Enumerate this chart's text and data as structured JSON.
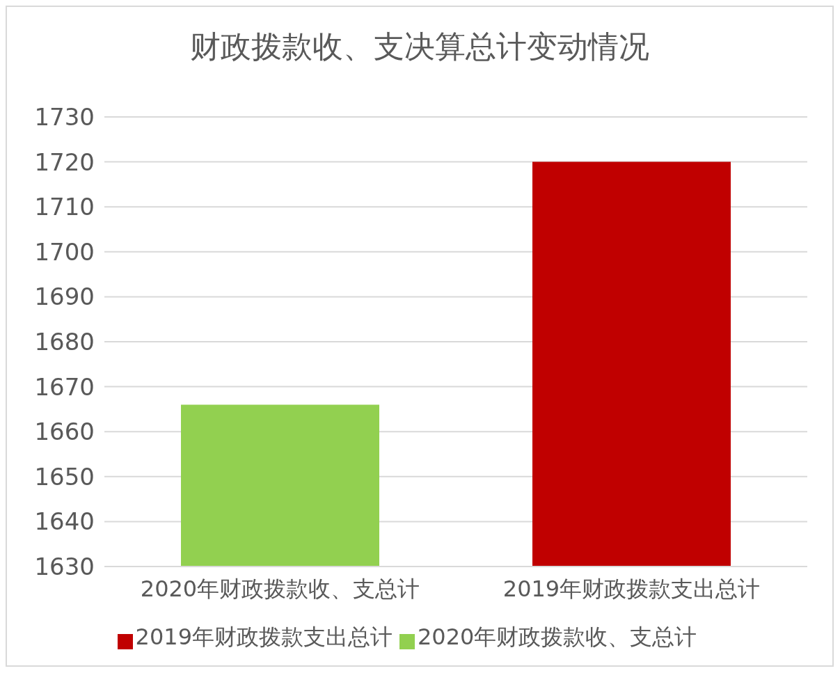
{
  "chart_data": {
    "type": "bar",
    "title": "财政拨款收、支决算总计变动情况",
    "categories": [
      "2020年财政拨款收、支总计",
      "2019年财政拨款支出总计"
    ],
    "series": [
      {
        "name": "2020年财政拨款收、支总计",
        "color": "#92d050",
        "values": [
          1666,
          null
        ]
      },
      {
        "name": "2019年财政拨款支出总计",
        "color": "#c00000",
        "values": [
          null,
          1720
        ]
      }
    ],
    "ylim": [
      1630,
      1730
    ],
    "yticks": [
      1630,
      1640,
      1650,
      1660,
      1670,
      1680,
      1690,
      1700,
      1710,
      1720,
      1730
    ],
    "grid": "y",
    "legend": "bottom"
  }
}
